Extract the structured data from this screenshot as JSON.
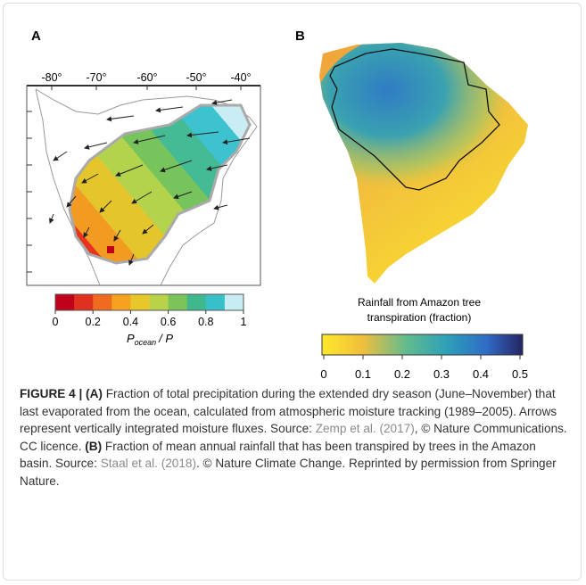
{
  "panels": [
    {
      "label": "A",
      "lon_ticks": [
        "-80°",
        "-70°",
        "-60°",
        "-50°",
        "-40°"
      ],
      "colorbar_ticks": [
        0,
        0.2,
        0.4,
        0.6,
        0.8,
        1
      ],
      "colorbar_label": {
        "symbol": "P",
        "subscript": "ocean",
        "rest": "/ P"
      }
    },
    {
      "label": "B",
      "colorbar_title": [
        "Rainfall from Amazon tree",
        "transpiration (fraction)"
      ],
      "colorbar_ticks": [
        0,
        0.1,
        0.2,
        0.3,
        0.4,
        0.5
      ]
    }
  ],
  "caption": [
    {
      "text": "FIGURE 4 | (A)",
      "style": "bold"
    },
    {
      "text": " Fraction of total precipitation during the extended dry season (June–November) that last evaporated from the ocean, calculated from atmospheric moisture tracking (1989–2005). Arrows represent vertically integrated moisture fluxes. Source: ",
      "style": "normal"
    },
    {
      "text": "Zemp et al. (2017)",
      "style": "link"
    },
    {
      "text": ", © Nature Communications. CC licence. ",
      "style": "normal"
    },
    {
      "text": "(B)",
      "style": "bold"
    },
    {
      "text": " Fraction of mean annual rainfall that has been transpired by trees in the Amazon basin. Source: ",
      "style": "normal"
    },
    {
      "text": "Staal et al. (2018)",
      "style": "link"
    },
    {
      "text": ". © Nature Climate Change. Reprinted by permission from Springer Nature.",
      "style": "normal"
    }
  ]
}
